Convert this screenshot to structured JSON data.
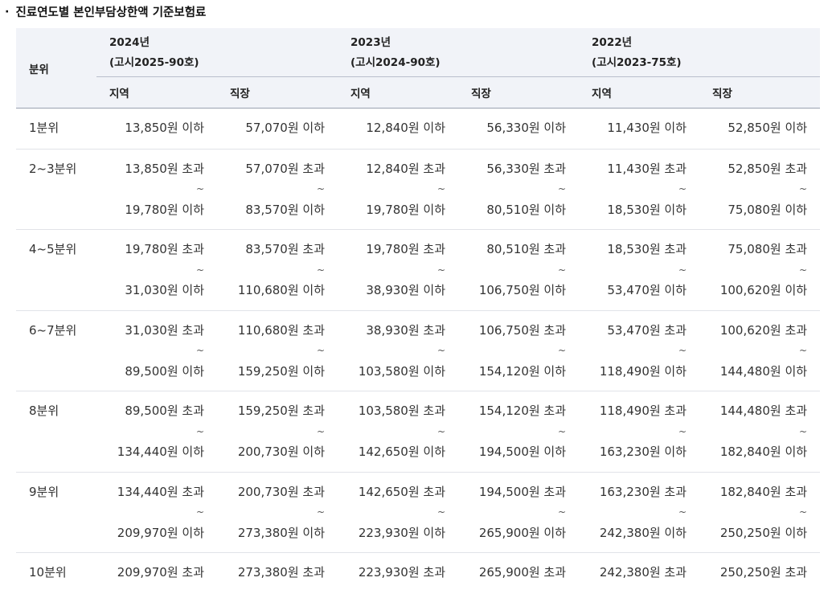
{
  "heading": {
    "bullet": "·",
    "title": "진료연도별 본인부담상한액 기준보험료"
  },
  "table": {
    "quintile_header": "분위",
    "years": [
      {
        "year": "2024년",
        "notice": "(고시2025-90호)"
      },
      {
        "year": "2023년",
        "notice": "(고시2024-90호)"
      },
      {
        "year": "2022년",
        "notice": "(고시2023-75호)"
      }
    ],
    "sub_headers": [
      "지역",
      "직장",
      "지역",
      "직장",
      "지역",
      "직장"
    ],
    "tilde": "~",
    "rows": [
      {
        "label": "1분위",
        "cells": [
          [
            "13,850원 이하"
          ],
          [
            "57,070원 이하"
          ],
          [
            "12,840원 이하"
          ],
          [
            "56,330원 이하"
          ],
          [
            "11,430원 이하"
          ],
          [
            "52,850원 이하"
          ]
        ]
      },
      {
        "label": "2~3분위",
        "cells": [
          [
            "13,850원 초과",
            "19,780원 이하"
          ],
          [
            "57,070원 초과",
            "83,570원 이하"
          ],
          [
            "12,840원 초과",
            "19,780원 이하"
          ],
          [
            "56,330원 초과",
            "80,510원 이하"
          ],
          [
            "11,430원 초과",
            "18,530원 이하"
          ],
          [
            "52,850원 초과",
            "75,080원 이하"
          ]
        ]
      },
      {
        "label": "4~5분위",
        "cells": [
          [
            "19,780원 초과",
            "31,030원 이하"
          ],
          [
            "83,570원 초과",
            "110,680원 이하"
          ],
          [
            "19,780원 초과",
            "38,930원 이하"
          ],
          [
            "80,510원 초과",
            "106,750원 이하"
          ],
          [
            "18,530원 초과",
            "53,470원 이하"
          ],
          [
            "75,080원 초과",
            "100,620원 이하"
          ]
        ]
      },
      {
        "label": "6~7분위",
        "cells": [
          [
            "31,030원 초과",
            "89,500원 이하"
          ],
          [
            "110,680원 초과",
            "159,250원 이하"
          ],
          [
            "38,930원 초과",
            "103,580원 이하"
          ],
          [
            "106,750원 초과",
            "154,120원 이하"
          ],
          [
            "53,470원 초과",
            "118,490원 이하"
          ],
          [
            "100,620원 초과",
            "144,480원 이하"
          ]
        ]
      },
      {
        "label": "8분위",
        "cells": [
          [
            "89,500원 초과",
            "134,440원 이하"
          ],
          [
            "159,250원 초과",
            "200,730원 이하"
          ],
          [
            "103,580원 초과",
            "142,650원 이하"
          ],
          [
            "154,120원 초과",
            "194,500원 이하"
          ],
          [
            "118,490원 초과",
            "163,230원 이하"
          ],
          [
            "144,480원 초과",
            "182,840원 이하"
          ]
        ]
      },
      {
        "label": "9분위",
        "cells": [
          [
            "134,440원 초과",
            "209,970원 이하"
          ],
          [
            "200,730원 초과",
            "273,380원 이하"
          ],
          [
            "142,650원 초과",
            "223,930원 이하"
          ],
          [
            "194,500원 초과",
            "265,900원 이하"
          ],
          [
            "163,230원 초과",
            "242,380원 이하"
          ],
          [
            "182,840원 초과",
            "250,250원 이하"
          ]
        ]
      },
      {
        "label": "10분위",
        "cells": [
          [
            "209,970원 초과"
          ],
          [
            "273,380원 초과"
          ],
          [
            "223,930원 초과"
          ],
          [
            "265,900원 초과"
          ],
          [
            "242,380원 초과"
          ],
          [
            "250,250원 초과"
          ]
        ]
      }
    ]
  }
}
